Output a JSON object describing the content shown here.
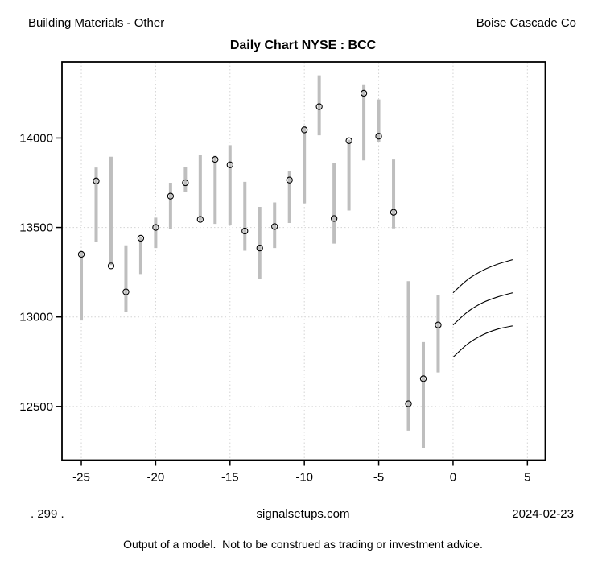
{
  "header": {
    "sector": "Building Materials - Other",
    "company": "Boise Cascade Co",
    "title": "Daily Chart NYSE : BCC"
  },
  "footer": {
    "left_code": ". 299 .",
    "site": "signalsetups.com",
    "date": "2024-02-23",
    "disclaimer": "Output of a model.  Not to be construed as trading or investment advice."
  },
  "colors": {
    "background": "#ffffff",
    "bar": "#bebebe",
    "marker": "#000000",
    "grid": "#d4d4d4",
    "axis": "#000000",
    "forecast_line": "#000000"
  },
  "chart_data": {
    "type": "bar",
    "subtype": "high-low-close",
    "title": "Daily Chart NYSE : BCC",
    "xlabel": "",
    "ylabel": "",
    "grid": true,
    "grid_style": "dotted",
    "legend": "none",
    "x_ticks": [
      -25,
      -20,
      -15,
      -10,
      -5,
      0,
      5
    ],
    "y_ticks": [
      12500,
      13000,
      13500,
      14000
    ],
    "xlim": [
      -26.3,
      6.2
    ],
    "ylim": [
      12200,
      14425
    ],
    "bars": [
      {
        "x": -25,
        "high": 13365,
        "low": 12980,
        "close": 13350
      },
      {
        "x": -24,
        "high": 13835,
        "low": 13420,
        "close": 13760
      },
      {
        "x": -23,
        "high": 13895,
        "low": 13290,
        "close": 13285
      },
      {
        "x": -22,
        "high": 13400,
        "low": 13030,
        "close": 13140
      },
      {
        "x": -21,
        "high": 13450,
        "low": 13240,
        "close": 13440
      },
      {
        "x": -20,
        "high": 13555,
        "low": 13385,
        "close": 13500
      },
      {
        "x": -19,
        "high": 13750,
        "low": 13490,
        "close": 13675
      },
      {
        "x": -18,
        "high": 13840,
        "low": 13700,
        "close": 13750
      },
      {
        "x": -17,
        "high": 13905,
        "low": 13540,
        "close": 13545
      },
      {
        "x": -16,
        "high": 13900,
        "low": 13520,
        "close": 13880
      },
      {
        "x": -15,
        "high": 13960,
        "low": 13515,
        "close": 13850
      },
      {
        "x": -14,
        "high": 13755,
        "low": 13370,
        "close": 13480
      },
      {
        "x": -13,
        "high": 13615,
        "low": 13210,
        "close": 13385
      },
      {
        "x": -12,
        "high": 13640,
        "low": 13385,
        "close": 13505
      },
      {
        "x": -11,
        "high": 13815,
        "low": 13525,
        "close": 13765
      },
      {
        "x": -10,
        "high": 14070,
        "low": 13635,
        "close": 14045
      },
      {
        "x": -9,
        "high": 14350,
        "low": 14015,
        "close": 14175
      },
      {
        "x": -8,
        "high": 13860,
        "low": 13410,
        "close": 13550
      },
      {
        "x": -7,
        "high": 13990,
        "low": 13595,
        "close": 13985
      },
      {
        "x": -6,
        "high": 14300,
        "low": 13875,
        "close": 14250
      },
      {
        "x": -5,
        "high": 14215,
        "low": 13975,
        "close": 14010
      },
      {
        "x": -4,
        "high": 13880,
        "low": 13495,
        "close": 13585
      },
      {
        "x": -3,
        "high": 13200,
        "low": 12365,
        "close": 12515
      },
      {
        "x": -2,
        "high": 12860,
        "low": 12270,
        "close": 12655
      },
      {
        "x": -1,
        "high": 13120,
        "low": 12690,
        "close": 12955
      }
    ],
    "forecast_curves": [
      {
        "name": "upper",
        "points": [
          [
            0,
            13135
          ],
          [
            1,
            13210
          ],
          [
            2,
            13260
          ],
          [
            3,
            13295
          ],
          [
            4,
            13320
          ]
        ]
      },
      {
        "name": "middle",
        "points": [
          [
            0,
            12955
          ],
          [
            1,
            13030
          ],
          [
            2,
            13080
          ],
          [
            3,
            13112
          ],
          [
            4,
            13135
          ]
        ]
      },
      {
        "name": "lower",
        "points": [
          [
            0,
            12775
          ],
          [
            1,
            12850
          ],
          [
            2,
            12900
          ],
          [
            3,
            12932
          ],
          [
            4,
            12950
          ]
        ]
      }
    ]
  }
}
